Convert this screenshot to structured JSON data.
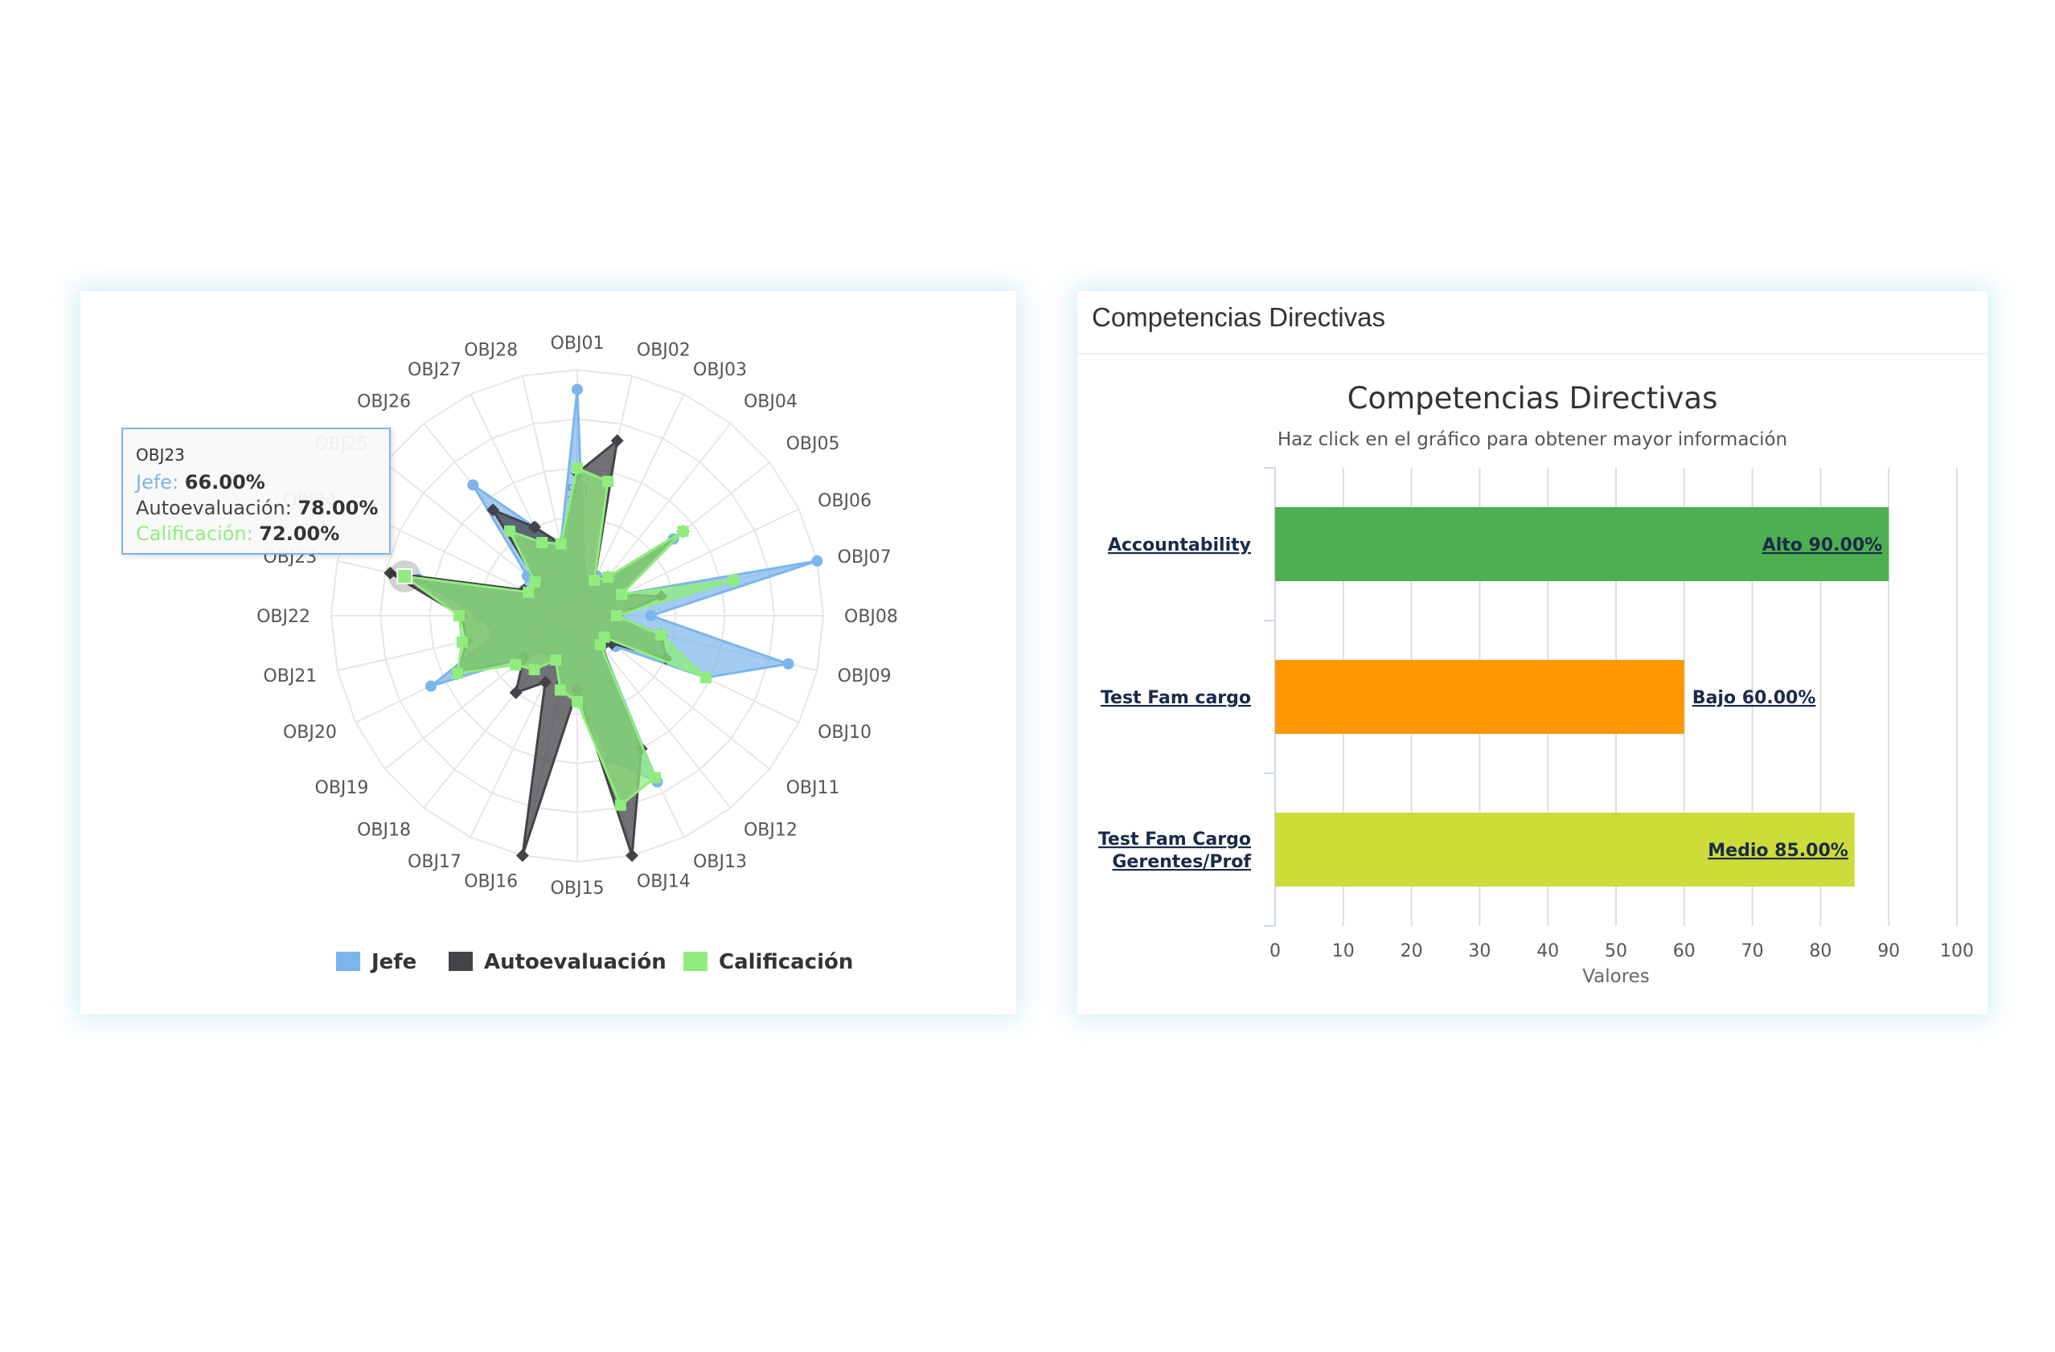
{
  "colors": {
    "jefe": "#7cb5ec",
    "autoevaluacion": "#434348",
    "calificacion": "#90ed7d",
    "grid": "#e6e6e6",
    "alto": "#4caf50",
    "bajo": "#ff9800",
    "medio": "#cddc39"
  },
  "chart_data": [
    {
      "type": "radar",
      "categories": [
        "OBJ01",
        "OBJ02",
        "OBJ03",
        "OBJ04",
        "OBJ05",
        "OBJ06",
        "OBJ07",
        "OBJ08",
        "OBJ09",
        "OBJ10",
        "OBJ11",
        "OBJ12",
        "OBJ13",
        "OBJ14",
        "OBJ15",
        "OBJ16",
        "OBJ17",
        "OBJ18",
        "OBJ19",
        "OBJ20",
        "OBJ21",
        "OBJ22",
        "OBJ23",
        "OBJ24",
        "OBJ25",
        "OBJ26",
        "OBJ27",
        "OBJ28"
      ],
      "radial_ticks": [
        "0",
        "50"
      ],
      "rlim": [
        0,
        100
      ],
      "series": [
        {
          "name": "Jefe",
          "values": [
            92,
            14,
            18,
            20,
            50,
            20,
            100,
            30,
            88,
            58,
            20,
            16,
            75,
            60,
            30,
            28,
            18,
            18,
            27,
            66,
            34,
            40,
            66,
            24,
            26,
            68,
            40,
            30
          ]
        },
        {
          "name": "Autoevaluación",
          "values": [
            58,
            73,
            16,
            20,
            55,
            20,
            35,
            16,
            35,
            40,
            18,
            16,
            60,
            100,
            30,
            100,
            30,
            40,
            28,
            54,
            46,
            47,
            78,
            24,
            20,
            55,
            40,
            30
          ]
        },
        {
          "name": "Calificación",
          "values": [
            60,
            56,
            16,
            20,
            55,
            20,
            65,
            16,
            35,
            58,
            14,
            15,
            73,
            79,
            35,
            31,
            20,
            28,
            32,
            54,
            48,
            48,
            72,
            22,
            22,
            44,
            33,
            30
          ]
        }
      ],
      "legend": {
        "items": [
          "Jefe",
          "Autoevaluación",
          "Calificación"
        ],
        "position": "bottom"
      },
      "tooltip": {
        "category": "OBJ23",
        "rows": [
          {
            "name": "Jefe",
            "value": "66.00%"
          },
          {
            "name": "Autoevaluación",
            "value": "78.00%"
          },
          {
            "name": "Calificación",
            "value": "72.00%"
          }
        ]
      }
    },
    {
      "type": "bar",
      "orientation": "horizontal",
      "title": "Competencias Directivas",
      "subtitle": "Haz click en el gráfico para obtener mayor información",
      "categories": [
        [
          "Accountability"
        ],
        [
          "Test Fam cargo"
        ],
        [
          "Test Fam Cargo",
          "Gerentes/Prof"
        ]
      ],
      "values": [
        90,
        60,
        85
      ],
      "data_labels": [
        "Alto 90.00%",
        "Bajo 60.00%",
        "Medio 85.00%"
      ],
      "bar_colors": [
        "#4caf50",
        "#ff9800",
        "#cddc39"
      ],
      "xlim": [
        0,
        100
      ],
      "xticks": [
        "0",
        "10",
        "20",
        "30",
        "40",
        "50",
        "60",
        "70",
        "80",
        "90",
        "100"
      ],
      "xlabel": "Valores",
      "grid": true
    }
  ],
  "bar_panel": {
    "header_title": "Competencias Directivas"
  }
}
